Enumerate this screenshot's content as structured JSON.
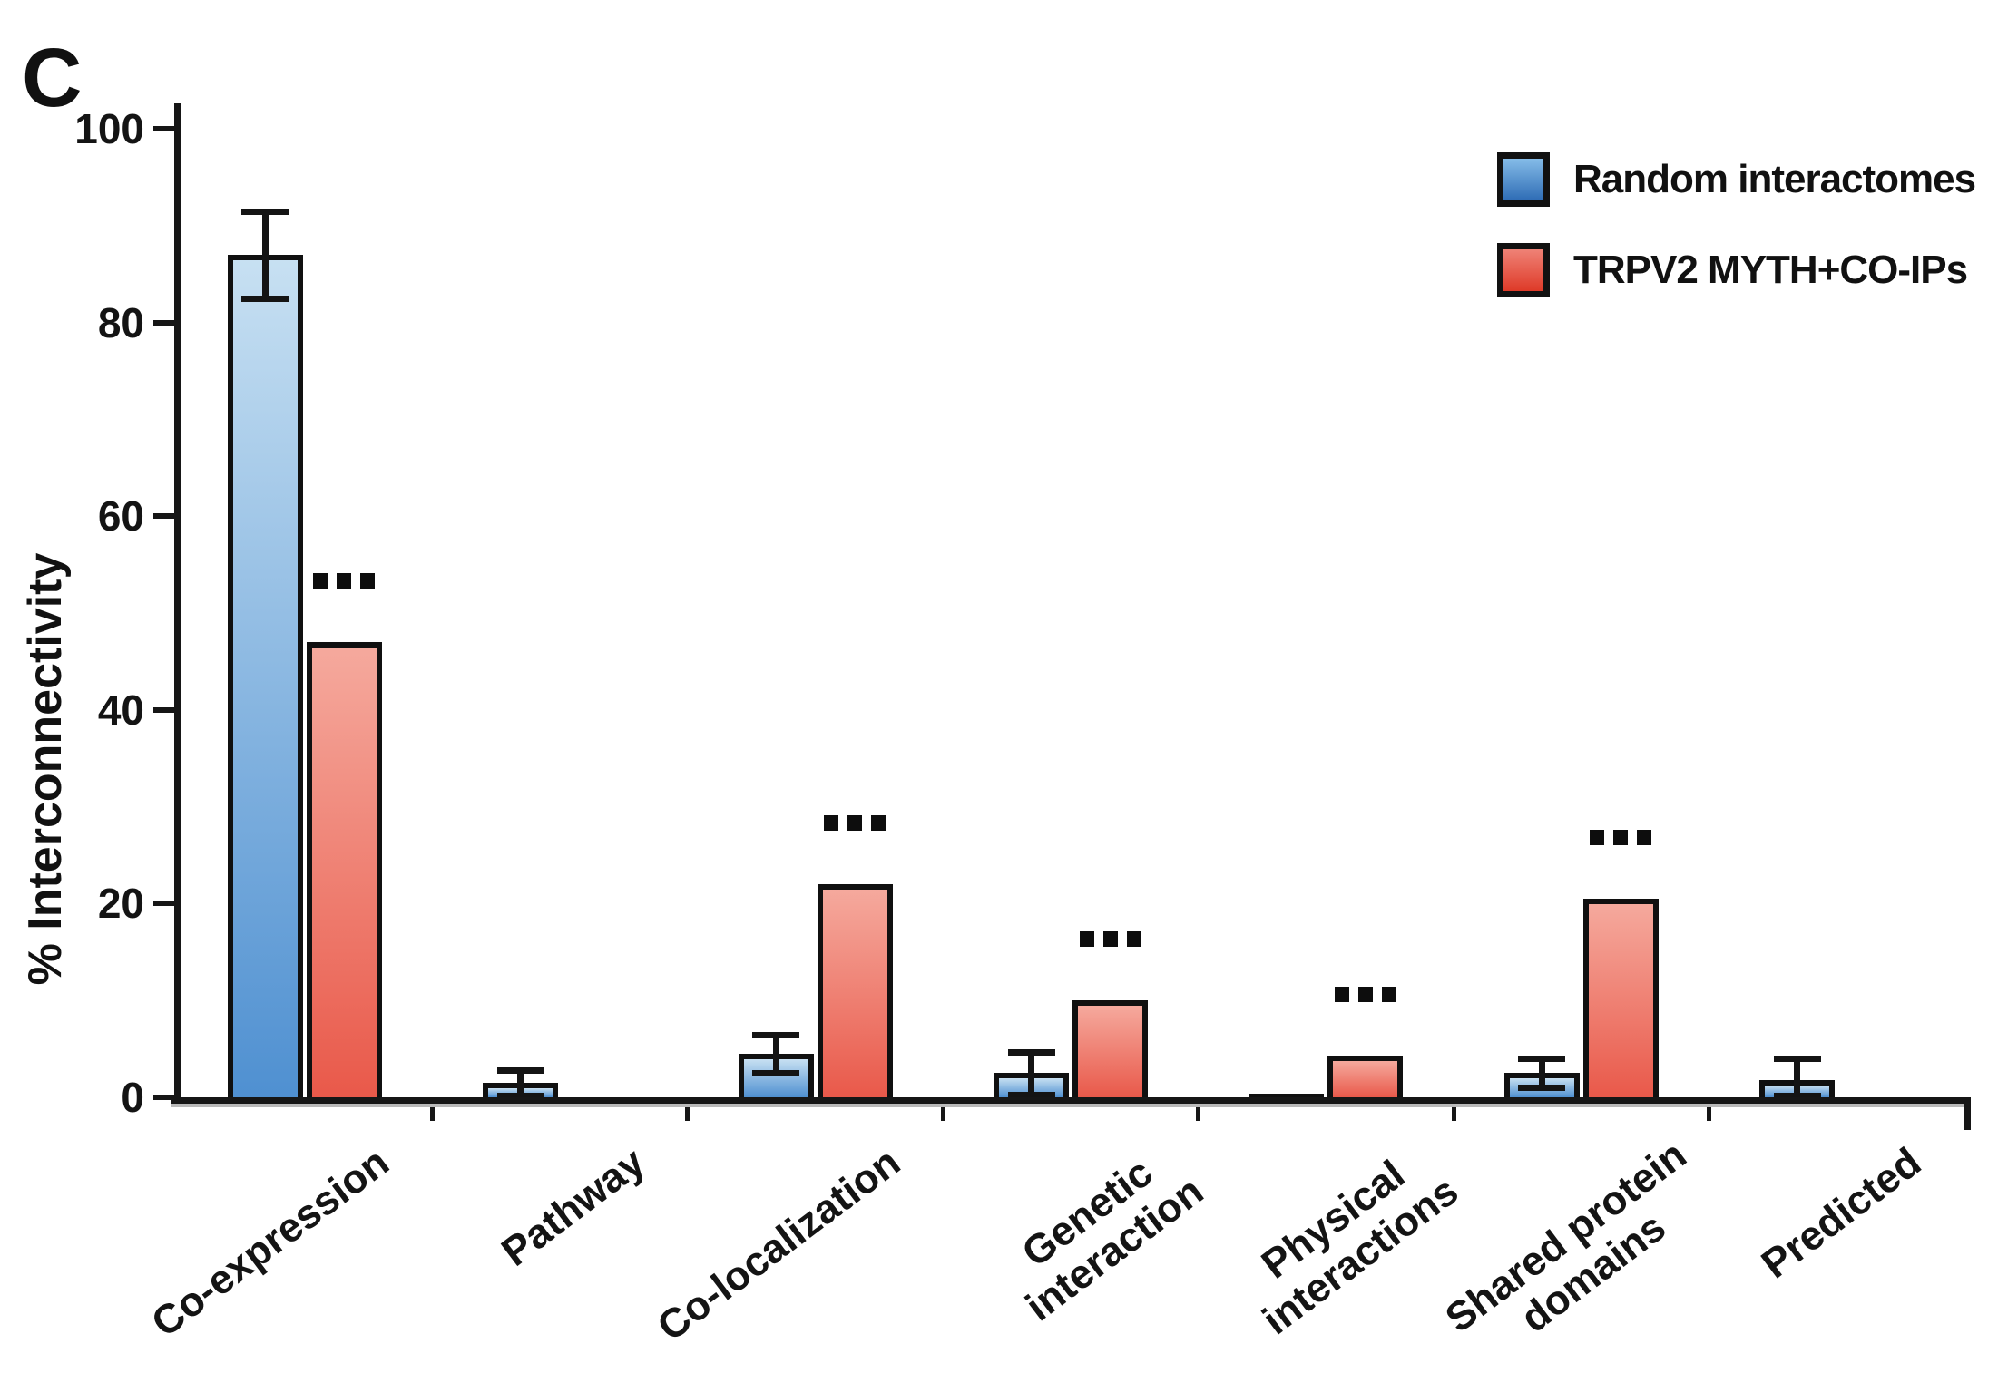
{
  "panel_label": "C",
  "chart_data": {
    "type": "bar",
    "title": "",
    "xlabel": "",
    "ylabel": "% Interconnectivity",
    "ylim": [
      0,
      100
    ],
    "yticks": [
      0,
      20,
      40,
      60,
      80,
      100
    ],
    "grid": false,
    "legend_position": "top-right",
    "categories": [
      [
        "Co-expression"
      ],
      [
        "Pathway"
      ],
      [
        "Co-localization"
      ],
      [
        "Genetic",
        "interaction"
      ],
      [
        "Physical",
        "interactions"
      ],
      [
        "Shared protein",
        "domains"
      ],
      [
        "Predicted"
      ]
    ],
    "series": [
      {
        "name": "Random interactomes",
        "fill_top": "#c7e0f2",
        "fill_bottom": "#4f90d1",
        "legend_top": "#85bce8",
        "legend_bottom": "#2e6cb5",
        "values": [
          87,
          1.5,
          4.5,
          2.5,
          0.4,
          2.5,
          1.8
        ],
        "errors": [
          4.5,
          1.3,
          2.0,
          2.2,
          null,
          1.5,
          2.2
        ]
      },
      {
        "name": "TRPV2 MYTH+CO-IPs",
        "fill_top": "#f5a99d",
        "fill_bottom": "#e9594a",
        "legend_top": "#ef8276",
        "legend_bottom": "#de3a28",
        "values": [
          47,
          null,
          22,
          10,
          4.3,
          20.5,
          null
        ],
        "errors": [
          null,
          null,
          null,
          null,
          null,
          null,
          null
        ]
      }
    ],
    "significance": [
      "***",
      null,
      "***",
      "***",
      "***",
      "***",
      null
    ],
    "significance_applies_to": "TRPV2 MYTH+CO-IPs",
    "ink_color": "#161616"
  }
}
